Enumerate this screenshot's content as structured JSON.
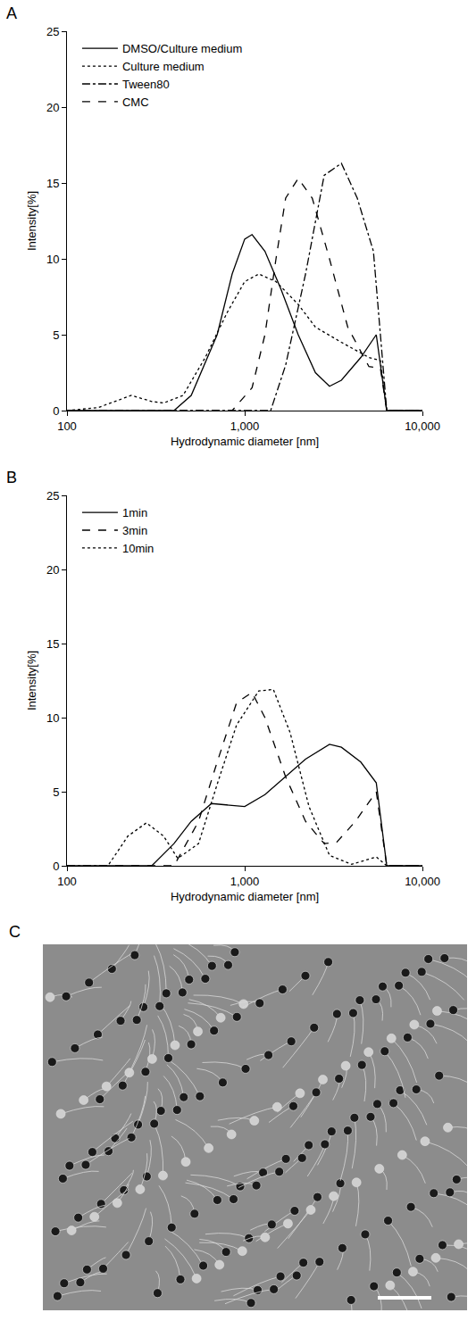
{
  "chart_data": [
    {
      "type": "line",
      "panel": "A",
      "x_label": "Hydrodynamic diameter [nm]",
      "y_label": "Intensity[%]",
      "log": "x",
      "grid": false,
      "legend": "upper left",
      "xlim": [
        100,
        10000
      ],
      "xticks": [
        100,
        {
          "value": 1000,
          "label": "1,000"
        },
        {
          "value": 10000,
          "label": "10,000"
        }
      ],
      "ylim": [
        0,
        25
      ],
      "yticks": [
        0,
        5,
        10,
        15,
        20,
        25
      ],
      "series": [
        {
          "name": "DMSO/Culture medium",
          "color": "#000000",
          "line_style": "solid",
          "x": [
            100,
            400,
            500,
            700,
            850,
            1000,
            1100,
            1300,
            1600,
            2000,
            2500,
            3000,
            3500,
            4500,
            5500,
            6300,
            10000
          ],
          "values": [
            0,
            0,
            1,
            5,
            9,
            11.3,
            11.6,
            10.5,
            8,
            5,
            2.5,
            1.6,
            2,
            3.5,
            5,
            0,
            0
          ]
        },
        {
          "name": "Culture medium",
          "color": "#000000",
          "line_style": "dotted",
          "x": [
            100,
            150,
            230,
            300,
            350,
            450,
            600,
            800,
            1000,
            1200,
            1500,
            2000,
            2500,
            3500,
            5000,
            5800,
            6300,
            10000
          ],
          "values": [
            0,
            0.2,
            1,
            0.6,
            0.5,
            1,
            3.5,
            6.5,
            8.5,
            9,
            8.5,
            7,
            5.5,
            4.5,
            3.5,
            3.3,
            0,
            0
          ]
        },
        {
          "name": "Tween80",
          "color": "#000000",
          "line_style": "dashdot",
          "x": [
            100,
            1400,
            1700,
            2200,
            2800,
            3500,
            4300,
            5300,
            6300,
            10000
          ],
          "values": [
            0,
            0,
            3,
            9,
            15.5,
            16.3,
            14,
            10.5,
            0,
            0
          ]
        },
        {
          "name": "CMC",
          "color": "#000000",
          "line_style": "dashed",
          "x": [
            100,
            850,
            1100,
            1300,
            1500,
            1700,
            2000,
            2400,
            3000,
            3800,
            5000,
            5800,
            6300,
            10000
          ],
          "values": [
            0,
            0,
            1.5,
            5,
            10,
            14,
            15.3,
            14,
            10,
            5.5,
            2.9,
            2.8,
            0,
            0
          ]
        }
      ]
    },
    {
      "type": "line",
      "panel": "B",
      "x_label": "Hydrodynamic diameter [nm]",
      "y_label": "Intensity[%]",
      "log": "x",
      "grid": false,
      "legend": "upper left",
      "xlim": [
        100,
        10000
      ],
      "xticks": [
        100,
        {
          "value": 1000,
          "label": "1,000"
        },
        {
          "value": 10000,
          "label": "10,000"
        }
      ],
      "ylim": [
        0,
        25
      ],
      "yticks": [
        0,
        5,
        10,
        15,
        20,
        25
      ],
      "series": [
        {
          "name": "1min",
          "color": "#000000",
          "line_style": "solid",
          "x": [
            100,
            300,
            400,
            500,
            650,
            800,
            1000,
            1300,
            1700,
            2200,
            3000,
            3500,
            4500,
            5500,
            6300,
            10000
          ],
          "values": [
            0,
            0,
            1.5,
            3,
            4.2,
            4.1,
            4,
            4.8,
            6,
            7.2,
            8.2,
            8,
            7,
            5.6,
            0,
            0
          ]
        },
        {
          "name": "3min",
          "color": "#000000",
          "line_style": "dashed",
          "x": [
            100,
            400,
            550,
            700,
            900,
            1100,
            1300,
            1700,
            2200,
            2800,
            3300,
            4200,
            5500,
            6300,
            10000
          ],
          "values": [
            0,
            0,
            3,
            7,
            11,
            11.7,
            10,
            6,
            3,
            1.5,
            1.6,
            3,
            5,
            0,
            0
          ]
        },
        {
          "name": "10min",
          "color": "#000000",
          "line_style": "dotted",
          "x": [
            100,
            170,
            220,
            280,
            350,
            420,
            550,
            700,
            900,
            1200,
            1450,
            1800,
            2300,
            3000,
            4000,
            5500,
            6300,
            10000
          ],
          "values": [
            0,
            0,
            2,
            2.9,
            2,
            0.5,
            1.5,
            5.5,
            9.5,
            11.8,
            11.9,
            9,
            4,
            0.7,
            0.1,
            0.6,
            0,
            0
          ]
        }
      ]
    }
  ],
  "image_panel": {
    "panel": "C"
  }
}
